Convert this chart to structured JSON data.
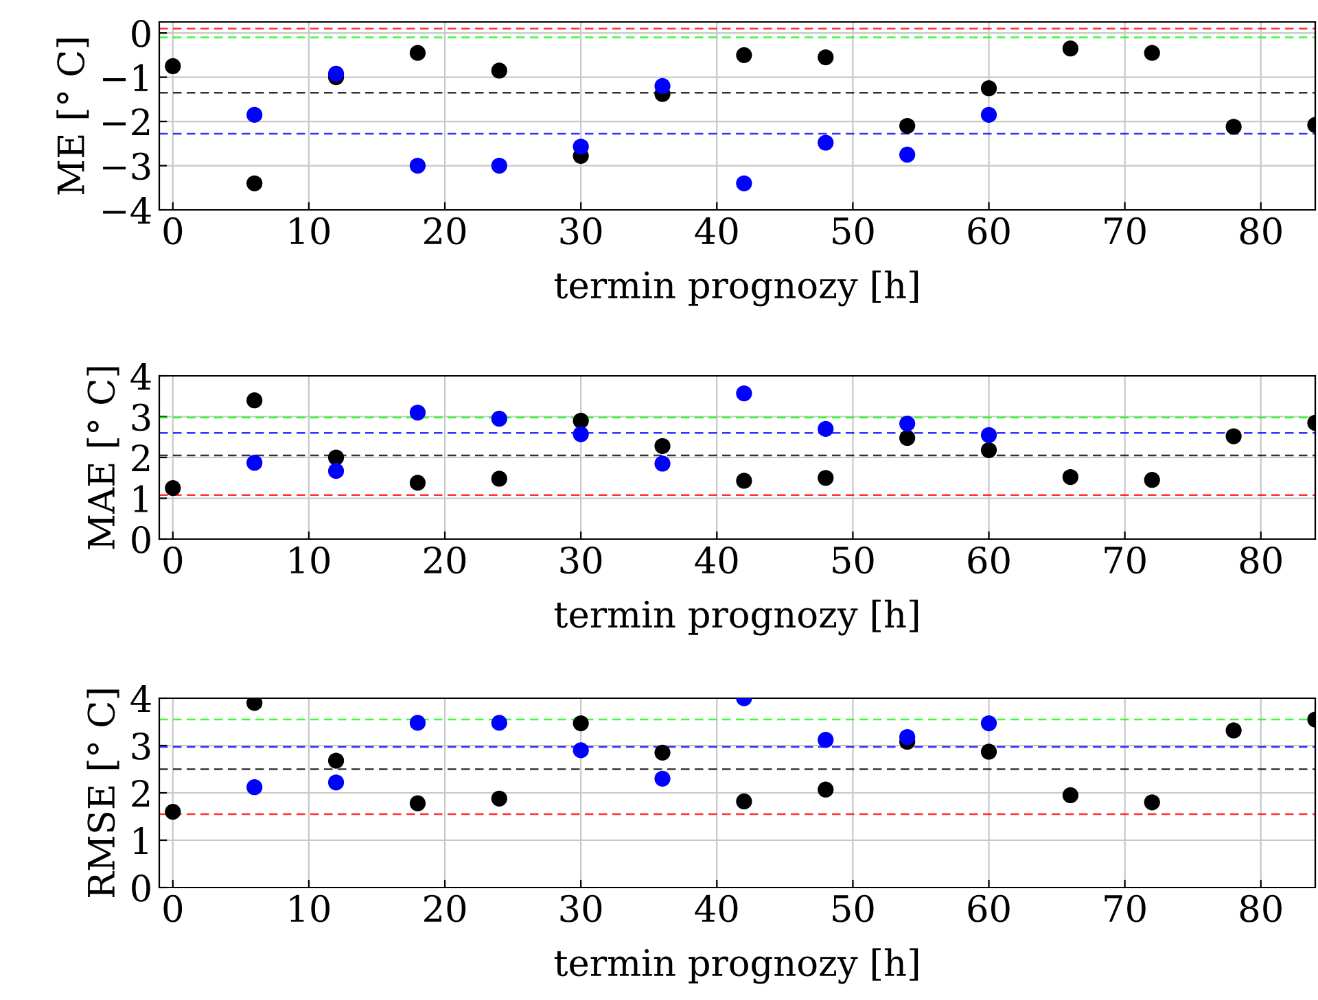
{
  "chart_data": [
    {
      "type": "scatter",
      "ylabel": "ME [° C]",
      "xlabel": "termin prognozy [h]",
      "xlim": [
        -1,
        84
      ],
      "xticks": [
        0,
        10,
        20,
        30,
        40,
        50,
        60,
        70,
        80
      ],
      "ylim": [
        -4,
        0.25
      ],
      "yticks": [
        -4,
        -3,
        -2,
        -1,
        0
      ],
      "grid": true,
      "marker": "circle",
      "series": [
        {
          "color": "#000000",
          "x": [
            0,
            6,
            12,
            18,
            24,
            30,
            36,
            42,
            48,
            54,
            60,
            66,
            72,
            78,
            84
          ],
          "values": [
            -0.75,
            -3.4,
            -1.0,
            -0.45,
            -0.85,
            -2.78,
            -1.38,
            -0.5,
            -0.55,
            -2.1,
            -1.25,
            -0.35,
            -0.45,
            -2.12,
            -2.08
          ]
        },
        {
          "color": "#0000ff",
          "x": [
            6,
            12,
            18,
            24,
            30,
            36,
            42,
            48,
            54,
            60
          ],
          "values": [
            -1.85,
            -0.92,
            -3.0,
            -3.0,
            -2.57,
            -1.2,
            -3.4,
            -2.48,
            -2.75,
            -1.85
          ]
        }
      ],
      "ref_lines": [
        {
          "axis": "y",
          "value": 0.1,
          "color": "#ff0000",
          "line_style": "dashed"
        },
        {
          "axis": "y",
          "value": -0.1,
          "color": "#00ff00",
          "line_style": "dashed"
        },
        {
          "axis": "y",
          "value": -1.35,
          "color": "#000000",
          "line_style": "dashed"
        },
        {
          "axis": "y",
          "value": -2.28,
          "color": "#0000ff",
          "line_style": "dashed"
        }
      ]
    },
    {
      "type": "scatter",
      "ylabel": "MAE [° C]",
      "xlabel": "termin prognozy [h]",
      "xlim": [
        -1,
        84
      ],
      "xticks": [
        0,
        10,
        20,
        30,
        40,
        50,
        60,
        70,
        80
      ],
      "ylim": [
        0,
        4
      ],
      "yticks": [
        0,
        1,
        2,
        3,
        4
      ],
      "grid": true,
      "marker": "circle",
      "series": [
        {
          "color": "#000000",
          "x": [
            0,
            6,
            12,
            18,
            24,
            30,
            36,
            42,
            48,
            54,
            60,
            66,
            72,
            78,
            84
          ],
          "values": [
            1.25,
            3.4,
            2.0,
            1.38,
            1.48,
            2.9,
            2.28,
            1.43,
            1.5,
            2.48,
            2.18,
            1.52,
            1.45,
            2.52,
            2.85
          ]
        },
        {
          "color": "#0000ff",
          "x": [
            6,
            12,
            18,
            24,
            30,
            36,
            42,
            48,
            54,
            60
          ],
          "values": [
            1.87,
            1.67,
            3.1,
            2.95,
            2.57,
            1.85,
            3.57,
            2.7,
            2.83,
            2.55
          ]
        }
      ],
      "ref_lines": [
        {
          "axis": "y",
          "value": 2.98,
          "color": "#00ff00",
          "line_style": "dashed"
        },
        {
          "axis": "y",
          "value": 2.6,
          "color": "#0000ff",
          "line_style": "dashed"
        },
        {
          "axis": "y",
          "value": 2.05,
          "color": "#000000",
          "line_style": "dashed"
        },
        {
          "axis": "y",
          "value": 1.08,
          "color": "#ff0000",
          "line_style": "dashed"
        }
      ]
    },
    {
      "type": "scatter",
      "ylabel": "RMSE [° C]",
      "xlabel": "termin prognozy [h]",
      "xlim": [
        -1,
        84
      ],
      "xticks": [
        0,
        10,
        20,
        30,
        40,
        50,
        60,
        70,
        80
      ],
      "ylim": [
        0,
        4
      ],
      "yticks": [
        0,
        1,
        2,
        3,
        4
      ],
      "grid": true,
      "marker": "circle",
      "series": [
        {
          "color": "#000000",
          "x": [
            0,
            6,
            12,
            18,
            24,
            30,
            36,
            42,
            48,
            54,
            60,
            66,
            72,
            78,
            84
          ],
          "values": [
            1.6,
            3.9,
            2.68,
            1.78,
            1.88,
            3.47,
            2.85,
            1.82,
            2.07,
            3.08,
            2.87,
            1.95,
            1.8,
            3.32,
            3.55
          ]
        },
        {
          "color": "#0000ff",
          "x": [
            6,
            12,
            18,
            24,
            30,
            36,
            42,
            48,
            54,
            60
          ],
          "values": [
            2.12,
            2.22,
            3.48,
            3.48,
            2.9,
            2.3,
            4.0,
            3.12,
            3.18,
            3.47
          ]
        }
      ],
      "ref_lines": [
        {
          "axis": "y",
          "value": 3.55,
          "color": "#00ff00",
          "line_style": "dashed"
        },
        {
          "axis": "y",
          "value": 2.97,
          "color": "#0000ff",
          "line_style": "dashed"
        },
        {
          "axis": "y",
          "value": 2.5,
          "color": "#000000",
          "line_style": "dashed"
        },
        {
          "axis": "y",
          "value": 1.55,
          "color": "#ff0000",
          "line_style": "dashed"
        }
      ]
    }
  ]
}
